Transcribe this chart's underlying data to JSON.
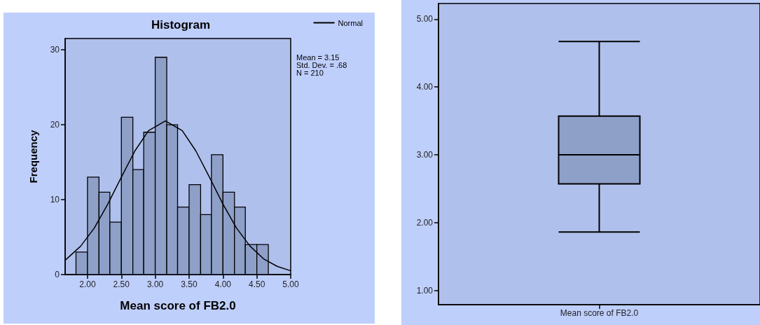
{
  "chart_data": [
    {
      "type": "histogram",
      "title": "Histogram",
      "xlabel": "Mean score of FB2.0",
      "ylabel": "Frequency",
      "color": "#8e9fc8",
      "bins": [
        1.83,
        2.0,
        2.17,
        2.33,
        2.5,
        2.67,
        2.83,
        3.0,
        3.17,
        3.33,
        3.5,
        3.67,
        3.83,
        4.0,
        4.17,
        4.33,
        4.5,
        4.67
      ],
      "values": [
        3,
        13,
        11,
        7,
        21,
        14,
        19,
        29,
        20,
        9,
        12,
        8,
        16,
        11,
        9,
        4,
        4
      ],
      "series": [
        {
          "type": "line",
          "name": "Normal",
          "color": "#000000",
          "x": [
            1.67,
            1.9,
            2.1,
            2.3,
            2.5,
            2.7,
            2.9,
            3.15,
            3.4,
            3.6,
            3.8,
            4.0,
            4.2,
            4.4,
            4.6,
            4.8,
            5.0
          ],
          "values": [
            1.9,
            3.8,
            6.2,
            9.4,
            13.0,
            16.5,
            19.2,
            20.5,
            19.2,
            16.5,
            13.0,
            9.4,
            6.2,
            3.8,
            2.1,
            1.1,
            0.5
          ]
        }
      ],
      "marker": "none",
      "legend": "top right",
      "grid": false,
      "annotations": [
        "Mean = 3.15",
        "Std. Dev. = .68",
        "N = 210"
      ],
      "xlim": [
        1.67,
        5.0
      ],
      "xticks": [
        {
          "value": 2,
          "label": "2.00"
        },
        {
          "value": 2.5,
          "label": "2.50"
        },
        {
          "value": 3,
          "label": "3.00"
        },
        {
          "value": 3.5,
          "label": "3.50"
        },
        {
          "value": 4,
          "label": "4.00"
        },
        {
          "value": 4.5,
          "label": "4.50"
        },
        {
          "value": 5,
          "label": "5.00"
        }
      ],
      "ylim": [
        0,
        31.5
      ],
      "yticks": [
        0,
        10,
        20,
        30
      ]
    },
    {
      "type": "box",
      "categories": [
        "Mean score of FB2.0"
      ],
      "color": "#8e9fc8",
      "grid": false,
      "boxes": [
        {
          "low": 1.86,
          "q1": 2.57,
          "median": 3.0,
          "q3": 3.57,
          "high": 4.67
        }
      ],
      "ylim": [
        0.79,
        5.23
      ],
      "yticks": [
        {
          "value": 1,
          "label": "1.00"
        },
        {
          "value": 2,
          "label": "2.00"
        },
        {
          "value": 3,
          "label": "3.00"
        },
        {
          "value": 4,
          "label": "4.00"
        },
        {
          "value": 5,
          "label": "5.00"
        }
      ]
    }
  ]
}
